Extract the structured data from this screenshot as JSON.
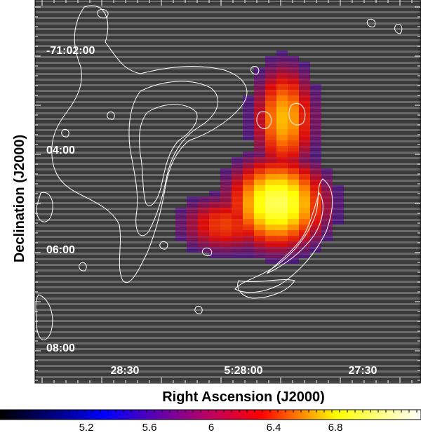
{
  "image": {
    "y_axis_ticks": [
      "-71:02:00",
      "04:00",
      "06:00",
      "08:00"
    ],
    "x_axis_ticks": [
      "28:30",
      "5:28:00",
      "27:30"
    ],
    "x_axis_title": "Right Ascension (J2000)",
    "y_axis_title": "Declination (J2000)",
    "colorbar_ticks": [
      "5.2",
      "5.6",
      "6",
      "6.4",
      "6.8"
    ],
    "colors": {
      "background": "#4a4a4a",
      "contour": "#ffffff",
      "colormap": [
        "#000000",
        "#0000ff",
        "#ff0000",
        "#ffff00",
        "#ffffff"
      ]
    }
  }
}
